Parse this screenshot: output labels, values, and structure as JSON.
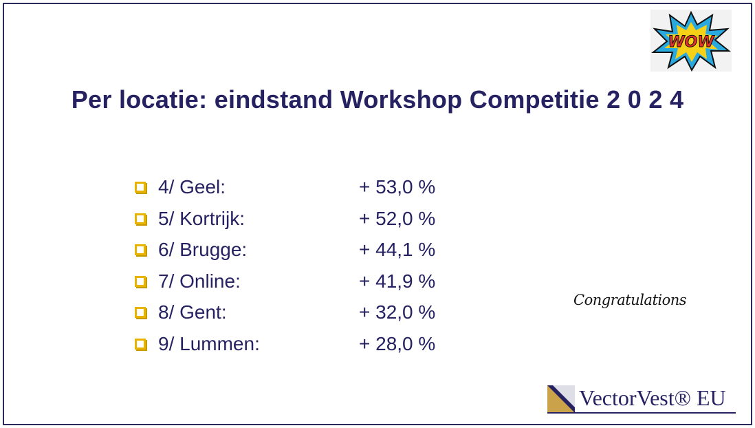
{
  "badge": "WOW",
  "title": "Per locatie: eindstand Workshop Competitie 2 0 2 4",
  "items": [
    {
      "label": "4/ Geel:",
      "value": "+ 53,0 %"
    },
    {
      "label": "5/ Kortrijk:",
      "value": "+ 52,0 %"
    },
    {
      "label": "6/ Brugge:",
      "value": "+ 44,1 %"
    },
    {
      "label": "7/ Online:",
      "value": "+ 41,9 %"
    },
    {
      "label": "8/ Gent:",
      "value": "+ 32,0 %"
    },
    {
      "label": "9/ Lummen:",
      "value": "+ 28,0 %"
    }
  ],
  "congratulations": "Congratulations",
  "logo": "VectorVest® EU"
}
